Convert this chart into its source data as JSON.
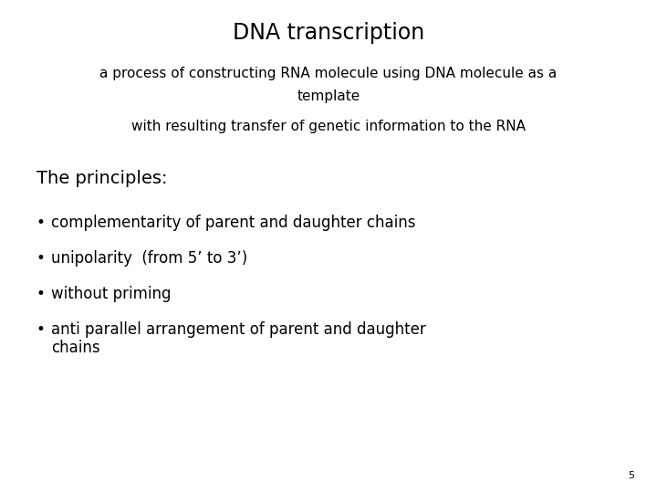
{
  "title": "DNA transcription",
  "subtitle_line1": "a process of constructing RNA molecule using DNA molecule as a",
  "subtitle_line2": "template",
  "sub_subtitle": "with resulting transfer of genetic information to the RNA",
  "principles_header": "The principles:",
  "bullets": [
    "complementarity of parent and daughter chains",
    "unipolarity  (from 5’ to 3’)",
    "without priming",
    "anti parallel arrangement of parent and daughter\nchains"
  ],
  "page_number": "5",
  "background_color": "#ffffff",
  "text_color": "#000000",
  "title_fontsize": 17,
  "subtitle_fontsize": 11,
  "principles_fontsize": 14,
  "bullet_fontsize": 12,
  "page_fontsize": 8
}
